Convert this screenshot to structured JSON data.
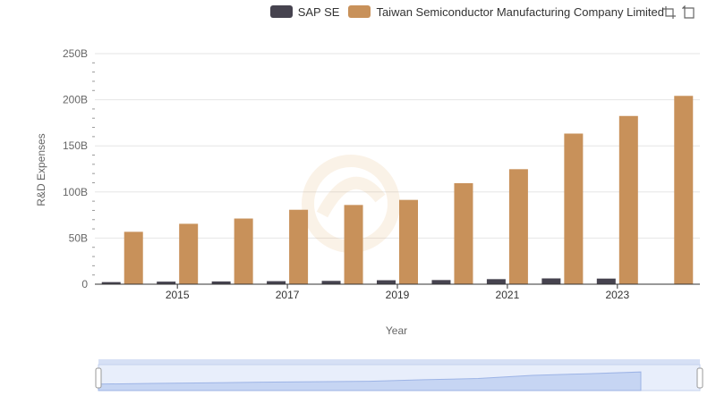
{
  "legend": {
    "items": [
      {
        "label": "SAP SE",
        "color": "#46434f"
      },
      {
        "label": "Taiwan Semiconductor Manufacturing Company Limited",
        "color": "#c8915a"
      }
    ]
  },
  "toolbox": {
    "icons": [
      "zoom-icon",
      "zoom-reset-icon"
    ]
  },
  "chart_data": {
    "type": "bar",
    "xlabel": "Year",
    "ylabel": "R&D Expenses",
    "x_tick_labels": [
      "2015",
      "2017",
      "2019",
      "2021",
      "2023"
    ],
    "y_tick_labels": [
      "0",
      "50B",
      "100B",
      "150B",
      "200B",
      "250B"
    ],
    "ylim": [
      0,
      250000000000
    ],
    "grid": true,
    "legend_position": "top-right",
    "categories": [
      2014,
      2015,
      2016,
      2017,
      2018,
      2019,
      2020,
      2021,
      2022,
      2023,
      2024
    ],
    "series": [
      {
        "name": "SAP SE",
        "color": "#46434f",
        "values": [
          2300000000,
          2800000000,
          3000000000,
          3300000000,
          3600000000,
          4300000000,
          4500000000,
          5500000000,
          6300000000,
          6100000000,
          null
        ]
      },
      {
        "name": "Taiwan Semiconductor Manufacturing Company Limited",
        "color": "#c8915a",
        "values": [
          56800000000,
          65500000000,
          71200000000,
          80700000000,
          85900000000,
          91400000000,
          109500000000,
          124700000000,
          163300000000,
          182400000000,
          204200000000
        ]
      }
    ]
  },
  "data_zoom": {
    "start": 0,
    "end": 100
  }
}
